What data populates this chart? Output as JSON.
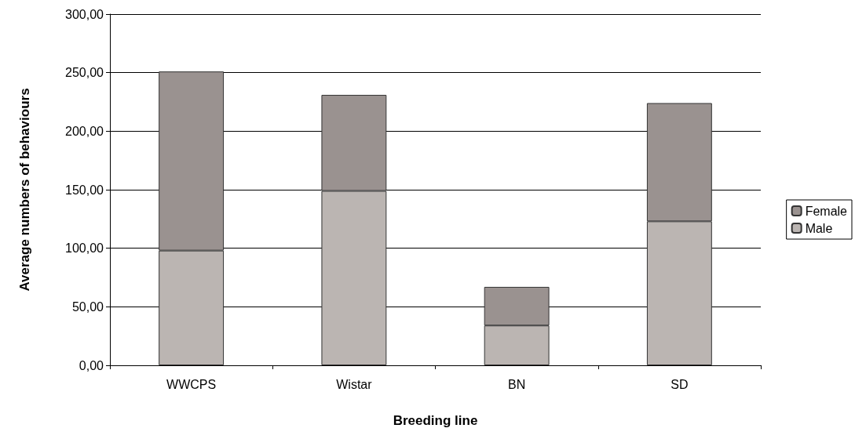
{
  "chart_data": {
    "type": "bar",
    "stacked": true,
    "xlabel": "Breeding line",
    "ylabel": "Average numbers of behaviours",
    "categories": [
      "WWCPS",
      "Wistar",
      "BN",
      "SD"
    ],
    "series": [
      {
        "name": "Male",
        "color": "#bbb5b2",
        "values": [
          98,
          149,
          34,
          123
        ]
      },
      {
        "name": "Female",
        "color": "#9a9290",
        "values": [
          153,
          82,
          33,
          101
        ]
      }
    ],
    "ylim": [
      0,
      300
    ],
    "yticks": [
      {
        "value": 0,
        "label": "0,00"
      },
      {
        "value": 50,
        "label": "50,00"
      },
      {
        "value": 100,
        "label": "100,00"
      },
      {
        "value": 150,
        "label": "150,00"
      },
      {
        "value": 200,
        "label": "200,00"
      },
      {
        "value": 250,
        "label": "250,00"
      },
      {
        "value": 300,
        "label": "300,00"
      }
    ],
    "grid": "y",
    "legend": "right"
  }
}
